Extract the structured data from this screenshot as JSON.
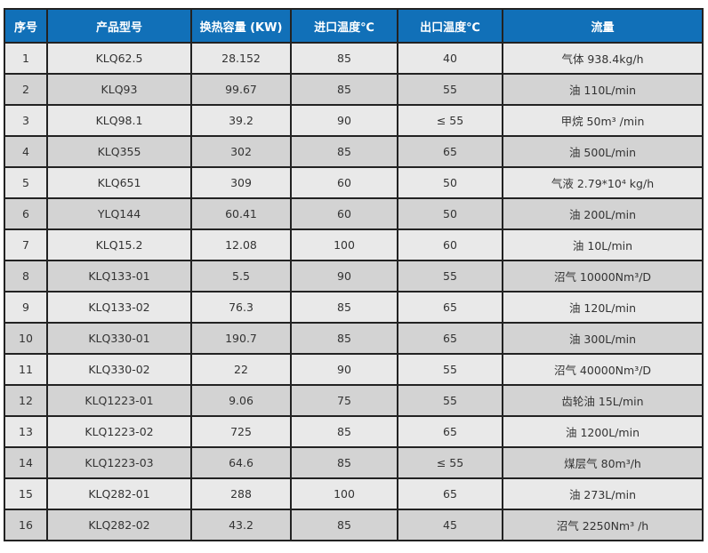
{
  "colors": {
    "header": "#1170b8",
    "row_light": "#e9e9e9",
    "row_dark": "#d3d3d3"
  },
  "headers": [
    "序号",
    "产品型号",
    "换热容量 (KW)",
    "进口温度℃",
    "出口温度℃",
    "流量"
  ],
  "rows": [
    [
      "1",
      "KLQ62.5",
      "28.152",
      "85",
      "40",
      "气体 938.4kg/h"
    ],
    [
      "2",
      "KLQ93",
      "99.67",
      "85",
      "55",
      "油 110L/min"
    ],
    [
      "3",
      "KLQ98.1",
      "39.2",
      "90",
      "≤ 55",
      "甲烷 50m³ /min"
    ],
    [
      "4",
      "KLQ355",
      "302",
      "85",
      "65",
      "油 500L/min"
    ],
    [
      "5",
      "KLQ651",
      "309",
      "60",
      "50",
      "气液 2.79*10⁴ kg/h"
    ],
    [
      "6",
      "YLQ144",
      "60.41",
      "60",
      "50",
      "油 200L/min"
    ],
    [
      "7",
      "KLQ15.2",
      "12.08",
      "100",
      "60",
      "油 10L/min"
    ],
    [
      "8",
      "KLQ133-01",
      "5.5",
      "90",
      "55",
      "沼气 10000Nm³/D"
    ],
    [
      "9",
      "KLQ133-02",
      "76.3",
      "85",
      "65",
      "油 120L/min"
    ],
    [
      "10",
      "KLQ330-01",
      "190.7",
      "85",
      "65",
      "油 300L/min"
    ],
    [
      "11",
      "KLQ330-02",
      "22",
      "90",
      "55",
      "沼气 40000Nm³/D"
    ],
    [
      "12",
      "KLQ1223-01",
      "9.06",
      "75",
      "55",
      "齿轮油 15L/min"
    ],
    [
      "13",
      "KLQ1223-02",
      "725",
      "85",
      "65",
      "油 1200L/min"
    ],
    [
      "14",
      "KLQ1223-03",
      "64.6",
      "85",
      "≤ 55",
      "煤层气 80m³/h"
    ],
    [
      "15",
      "KLQ282-01",
      "288",
      "100",
      "65",
      "油 273L/min"
    ],
    [
      "16",
      "KLQ282-02",
      "43.2",
      "85",
      "45",
      "沼气 2250Nm³ /h"
    ]
  ]
}
